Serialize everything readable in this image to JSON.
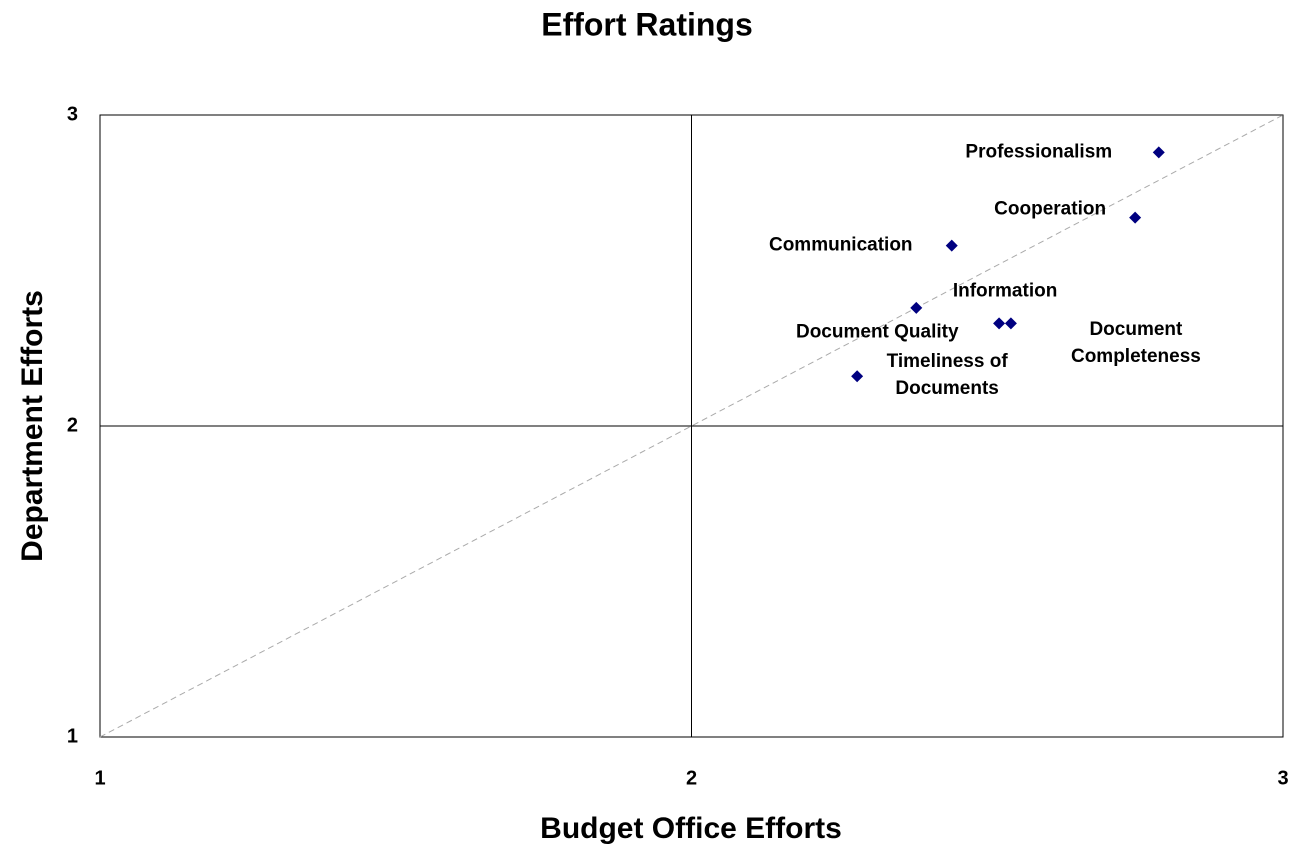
{
  "chart_data": {
    "type": "scatter",
    "title": "Effort Ratings",
    "x_label": "Budget Office Efforts",
    "y_label": "Department Efforts",
    "labels": [
      "Professionalism",
      "Cooperation",
      "Communication",
      "Document Quality",
      "Information",
      "Document\nCompleteness",
      "Timeliness of\nDocuments"
    ],
    "x": [
      2.79,
      2.75,
      2.44,
      2.38,
      2.52,
      2.54,
      2.28
    ],
    "y": [
      2.88,
      2.67,
      2.58,
      2.38,
      2.33,
      2.33,
      2.16
    ],
    "color": "#000080",
    "xlim": [
      1,
      3
    ],
    "ylim": [
      1,
      3
    ],
    "xticks": [
      1,
      2,
      3
    ],
    "yticks": [
      1,
      2,
      3
    ],
    "grid": true,
    "diagonal": true
  }
}
